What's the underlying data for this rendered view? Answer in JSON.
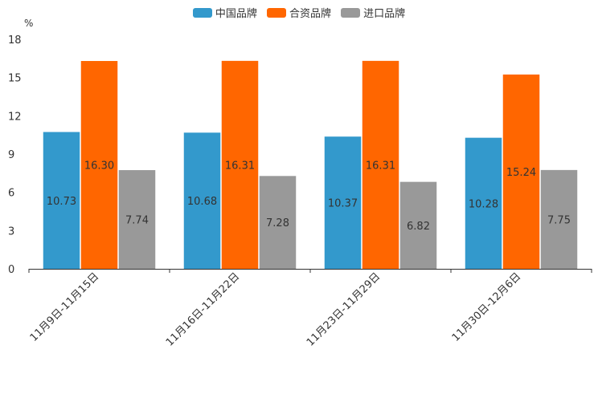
{
  "chart_data": {
    "type": "bar",
    "title": "",
    "xlabel": "",
    "ylabel": "%",
    "ylim": [
      0,
      18
    ],
    "yticks": [
      "0",
      "3",
      "6",
      "9",
      "12",
      "15",
      "18"
    ],
    "categories": [
      "11月9日-11月15日",
      "11月16日-11月22日",
      "11月23日-11月29日",
      "11月30日-12月6日"
    ],
    "series": [
      {
        "name": "中国品牌",
        "color": "#3399CC",
        "values": [
          10.73,
          10.68,
          10.37,
          10.28
        ],
        "labels": [
          "10.73",
          "10.68",
          "10.37",
          "10.28"
        ]
      },
      {
        "name": "合资品牌",
        "color": "#FF6600",
        "values": [
          16.3,
          16.31,
          16.31,
          15.24
        ],
        "labels": [
          "16.30",
          "16.31",
          "16.31",
          "15.24"
        ]
      },
      {
        "name": "进口品牌",
        "color": "#999999",
        "values": [
          7.74,
          7.28,
          6.82,
          7.75
        ],
        "labels": [
          "7.74",
          "7.28",
          "6.82",
          "7.75"
        ]
      }
    ],
    "legend_position": "top-center",
    "grid": false
  }
}
